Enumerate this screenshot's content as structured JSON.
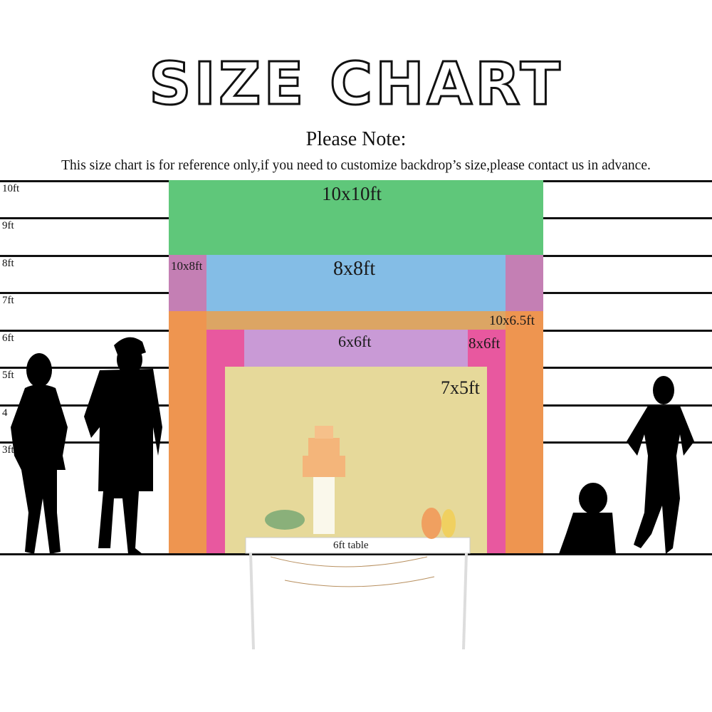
{
  "title": "SIZE CHART",
  "note_heading": "Please Note:",
  "note_text": "This size chart is for reference only,if you need to customize backdrop’s size,please contact us in advance.",
  "height_labels": [
    "10ft",
    "9ft",
    "8ft",
    "7ft",
    "6ft",
    "5ft",
    "4",
    "3ft"
  ],
  "backdrops": [
    {
      "label": "10x10ft",
      "width_ft": 10,
      "height_ft": 10,
      "color": "#5fc77a"
    },
    {
      "label": "10x8ft",
      "width_ft": 10,
      "height_ft": 8,
      "color": "#c47fb4"
    },
    {
      "label": "8x8ft",
      "width_ft": 8,
      "height_ft": 8,
      "color": "#84bde6"
    },
    {
      "label": "10x6.5ft",
      "width_ft": 10,
      "height_ft": 6.5,
      "color": "#ee9550"
    },
    {
      "label": "8x6ft",
      "width_ft": 8,
      "height_ft": 6,
      "color": "#e8589f"
    },
    {
      "label": "6x6ft",
      "width_ft": 6,
      "height_ft": 6,
      "color": "#c99ad6"
    },
    {
      "label": "7x5ft",
      "width_ft": 7,
      "height_ft": 5,
      "color": "#e6d99a"
    }
  ],
  "table_label": "6ft table"
}
